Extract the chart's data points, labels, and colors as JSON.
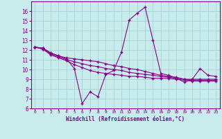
{
  "xlabel": "Windchill (Refroidissement éolien,°C)",
  "bg_color": "#c8ecec",
  "line_color": "#880088",
  "grid_color": "#a0cccc",
  "xlim": [
    -0.5,
    23.5
  ],
  "ylim": [
    6,
    17
  ],
  "yticks": [
    6,
    7,
    8,
    9,
    10,
    11,
    12,
    13,
    14,
    15,
    16
  ],
  "xticks": [
    0,
    1,
    2,
    3,
    4,
    5,
    6,
    7,
    8,
    9,
    10,
    11,
    12,
    13,
    14,
    15,
    16,
    17,
    18,
    19,
    20,
    21,
    22,
    23
  ],
  "series1": [
    12.3,
    12.2,
    11.7,
    11.4,
    11.1,
    10.1,
    6.5,
    7.7,
    7.2,
    9.5,
    9.9,
    11.8,
    15.1,
    15.8,
    16.4,
    13.0,
    9.6,
    9.4,
    9.1,
    8.7,
    9.0,
    10.1,
    9.4,
    9.3
  ],
  "series2": [
    12.3,
    12.2,
    11.7,
    11.4,
    11.2,
    11.1,
    11.0,
    10.9,
    10.8,
    10.6,
    10.4,
    10.3,
    10.1,
    10.0,
    9.8,
    9.6,
    9.4,
    9.3,
    9.2,
    9.0,
    9.0,
    9.0,
    9.0,
    9.0
  ],
  "series3": [
    12.3,
    12.1,
    11.6,
    11.3,
    11.0,
    10.8,
    10.6,
    10.4,
    10.3,
    10.1,
    10.0,
    9.9,
    9.7,
    9.6,
    9.5,
    9.4,
    9.3,
    9.2,
    9.1,
    9.0,
    8.9,
    8.9,
    8.9,
    8.9
  ],
  "series4": [
    12.3,
    12.1,
    11.5,
    11.2,
    10.9,
    10.5,
    10.2,
    9.9,
    9.7,
    9.6,
    9.5,
    9.4,
    9.3,
    9.3,
    9.2,
    9.1,
    9.1,
    9.1,
    9.0,
    8.9,
    8.8,
    8.8,
    8.8,
    8.8
  ]
}
